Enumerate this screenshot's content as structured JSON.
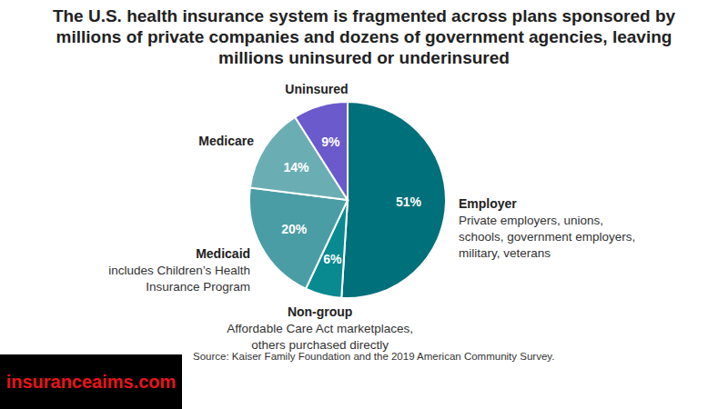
{
  "chart_data": {
    "type": "pie",
    "title": "The U.S. health insurance system is fragmented across plans sponsored by millions of private companies and dozens of government agencies, leaving millions uninsured or underinsured",
    "categories": [
      "Employer",
      "Non-group",
      "Medicaid",
      "Medicare",
      "Uninsured"
    ],
    "values": [
      51,
      6,
      20,
      14,
      9
    ],
    "value_labels": [
      "51%",
      "6%",
      "20%",
      "14%",
      "9%"
    ],
    "colors": [
      "#00707a",
      "#088a90",
      "#4a9da5",
      "#6aaeb4",
      "#6a5acb"
    ],
    "descriptions": [
      [
        "Private employers, unions,",
        "schools, government employers,",
        "military, veterans"
      ],
      [
        "Affordable Care Act marketplaces,",
        "others purchased directly"
      ],
      [
        "includes Children’s Health",
        "Insurance Program"
      ],
      null,
      null
    ],
    "data_labels": true,
    "source": "Source: Kaiser Family Foundation and the 2019 American Community Survey.",
    "watermark": "insuranceaims.com"
  }
}
